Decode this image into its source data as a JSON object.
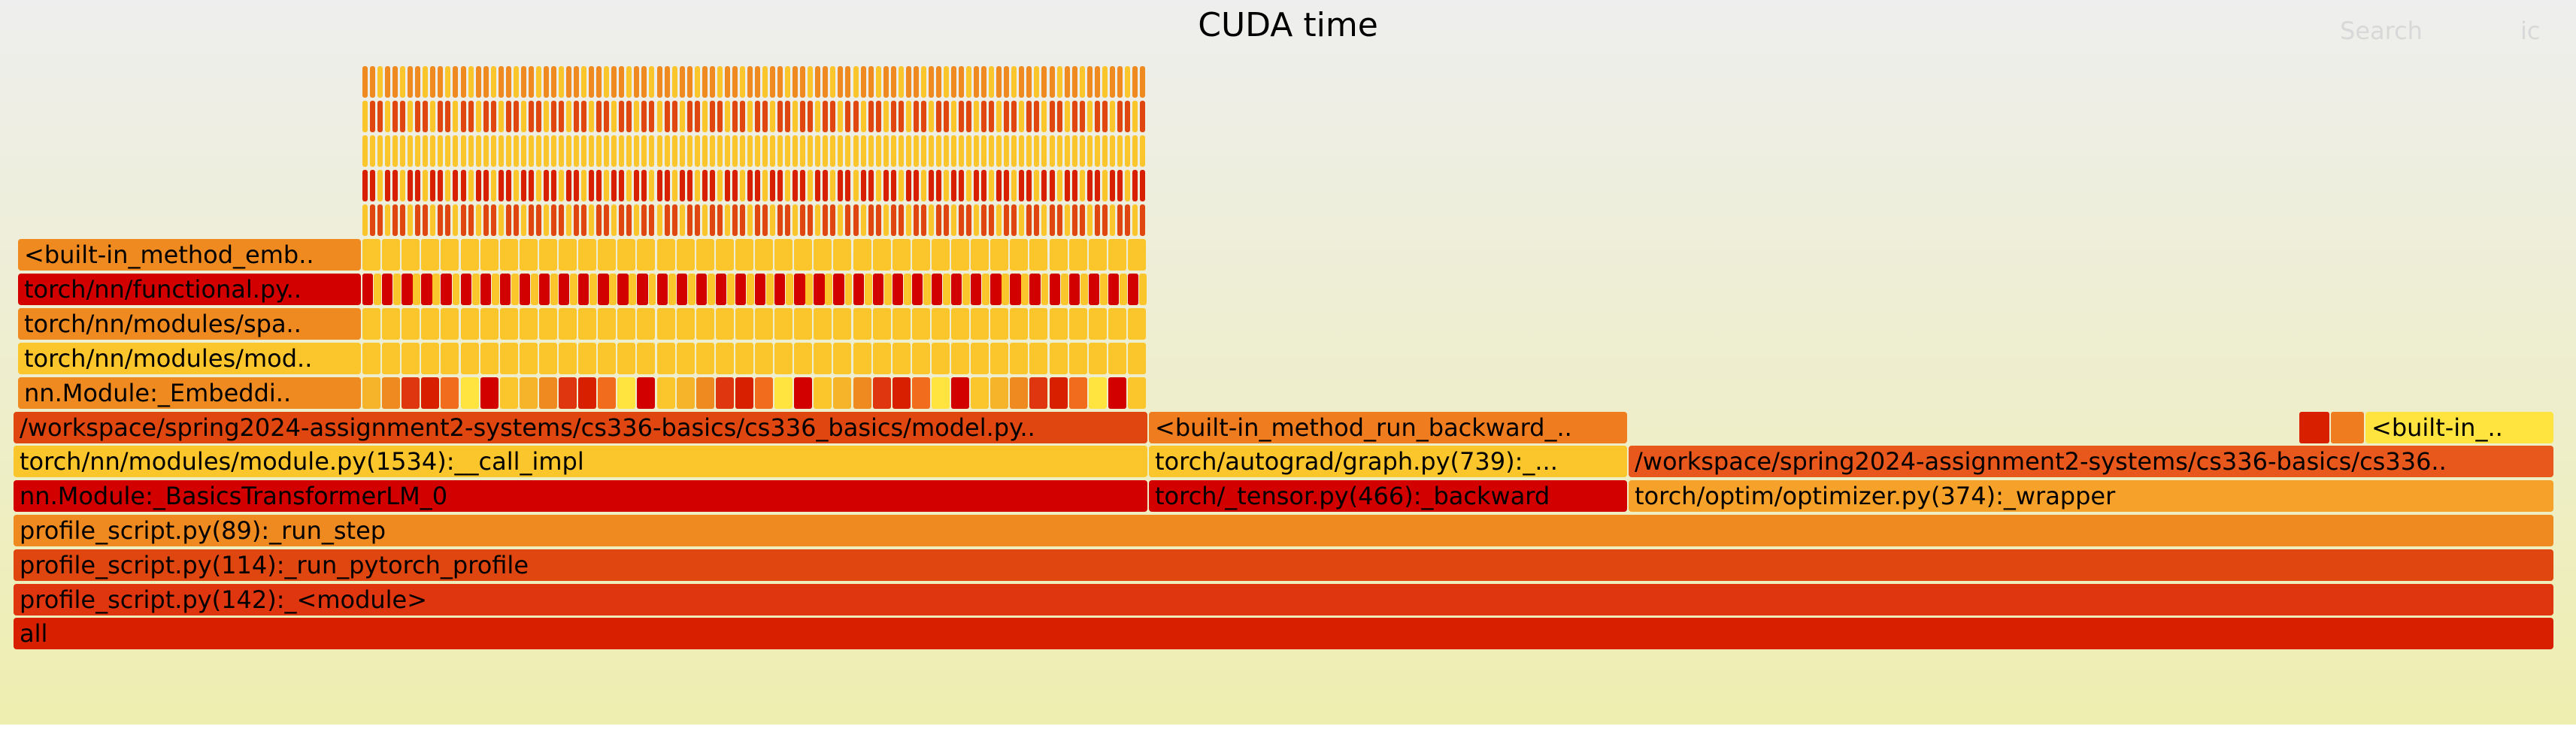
{
  "header": {
    "title": "CUDA time",
    "search_label": "Search",
    "ic_label": "ic"
  },
  "colors": {
    "background_top": "#eeeeee",
    "background_bottom": "#eeeeb0",
    "frame_palette": [
      "#d81f00",
      "#e0360f",
      "#ef8a20",
      "#f6b42a",
      "#fbc52c",
      "#d30000",
      "#ffe440",
      "#f26c1e"
    ]
  },
  "flamegraph": {
    "frames": [
      {
        "label": "all",
        "color": "#d81f00"
      },
      {
        "label": "profile_script.py(142):_<module>",
        "color": "#e0360f"
      },
      {
        "label": "profile_script.py(114):_run_pytorch_profile",
        "color": "#e0460f"
      },
      {
        "label": "profile_script.py(89):_run_step",
        "color": "#ef8a20"
      },
      {
        "label": "nn.Module:_BasicsTransformerLM_0",
        "color": "#d30000"
      },
      {
        "label": "torch/_tensor.py(466):_backward",
        "color": "#d30000"
      },
      {
        "label": "torch/optim/optimizer.py(374):_wrapper",
        "color": "#f6a22a"
      },
      {
        "label": "torch/nn/modules/module.py(1534):__call_impl",
        "color": "#fbc52c"
      },
      {
        "label": "torch/autograd/graph.py(739):_...",
        "color": "#fbc52c"
      },
      {
        "label": "/workspace/spring2024-assignment2-systems/cs336-basics/cs336..",
        "color": "#e8581c"
      },
      {
        "label": "/workspace/spring2024-assignment2-systems/cs336-basics/cs336_basics/model.py..",
        "color": "#e0460f"
      },
      {
        "label": "<built-in_method_run_backward_..",
        "color": "#ef7d20"
      },
      {
        "label": "<built-in_..",
        "color": "#ffe440"
      },
      {
        "label": "nn.Module:_Embeddi..",
        "color": "#ef8a20"
      },
      {
        "label": "torch/nn/modules/mod..",
        "color": "#fbc52c"
      },
      {
        "label": "torch/nn/modules/spa..",
        "color": "#ef8a20"
      },
      {
        "label": "torch/nn/functional.py..",
        "color": "#d30000"
      },
      {
        "label": "<built-in_method_emb..",
        "color": "#ef8a20"
      }
    ]
  }
}
